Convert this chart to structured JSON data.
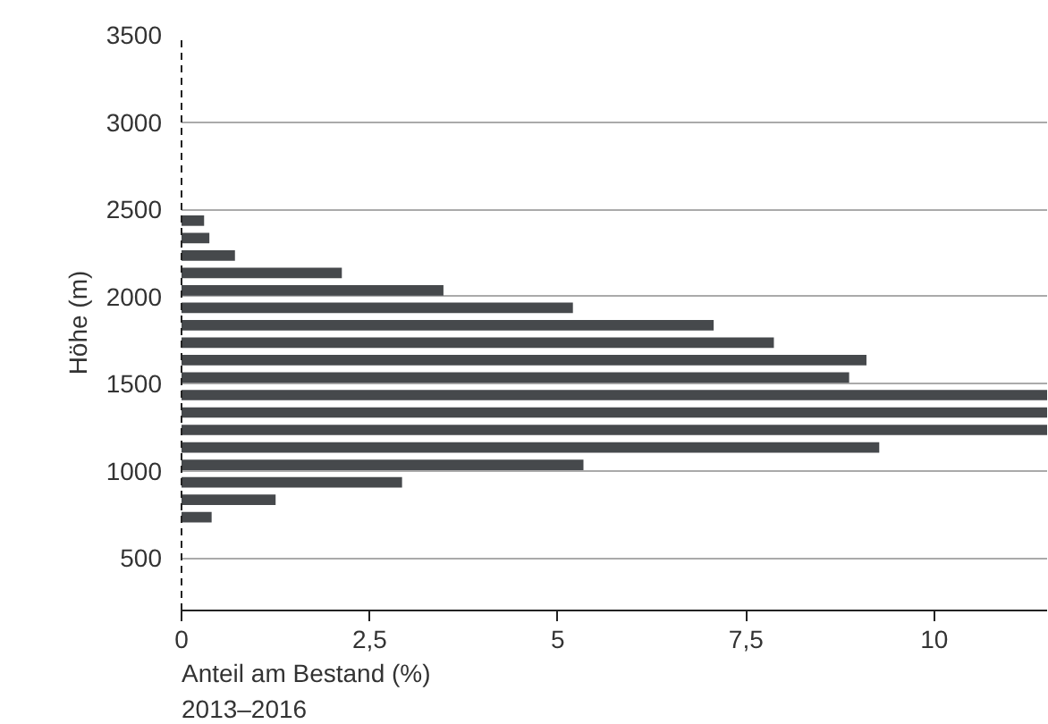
{
  "chart_data": {
    "type": "bar",
    "orientation": "horizontal",
    "ylabel": "Höhe (m)",
    "xlabel": "Anteil am Bestand (%)",
    "annotations": [
      "2013–2016"
    ],
    "x": [
      735,
      835,
      935,
      1035,
      1135,
      1235,
      1335,
      1435,
      1535,
      1635,
      1735,
      1835,
      1935,
      2035,
      2135,
      2235,
      2335,
      2435
    ],
    "values": [
      0.4,
      1.25,
      2.93,
      5.34,
      9.27,
      11.5,
      11.5,
      11.5,
      8.87,
      9.1,
      7.87,
      7.07,
      5.2,
      3.48,
      2.13,
      0.71,
      0.37,
      0.3
    ],
    "color": "#46494c",
    "xlim": [
      0,
      11.5
    ],
    "xticks": [
      0,
      {
        "value": 2.5,
        "label": "2,5"
      },
      5,
      {
        "value": 7.5,
        "label": "7,5"
      },
      10
    ],
    "ylim": [
      200,
      3500
    ],
    "yticks": [
      500,
      1000,
      1500,
      2000,
      2500,
      3000,
      3500
    ],
    "grid": "y"
  }
}
